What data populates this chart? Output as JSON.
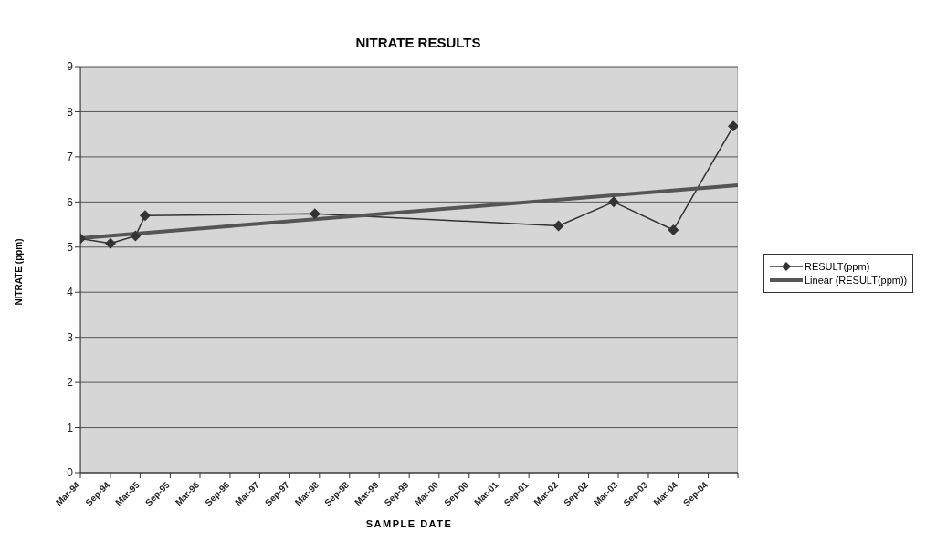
{
  "chart_data": {
    "type": "line",
    "title": "NITRATE RESULTS",
    "xlabel": "SAMPLE DATE",
    "ylabel": "NITRATE (ppm)",
    "xlim": [
      "1994-03",
      "2005-03"
    ],
    "xticks": [
      {
        "value": "1994-03",
        "label": "Mar-94"
      },
      {
        "value": "1994-09",
        "label": "Sep-94"
      },
      {
        "value": "1995-03",
        "label": "Mar-95"
      },
      {
        "value": "1995-09",
        "label": "Sep-95"
      },
      {
        "value": "1996-03",
        "label": "Mar-96"
      },
      {
        "value": "1996-09",
        "label": "Sep-96"
      },
      {
        "value": "1997-03",
        "label": "Mar-97"
      },
      {
        "value": "1997-09",
        "label": "Sep-97"
      },
      {
        "value": "1998-03",
        "label": "Mar-98"
      },
      {
        "value": "1998-09",
        "label": "Sep-98"
      },
      {
        "value": "1999-03",
        "label": "Mar-99"
      },
      {
        "value": "1999-09",
        "label": "Sep-99"
      },
      {
        "value": "2000-03",
        "label": "Mar-00"
      },
      {
        "value": "2000-09",
        "label": "Sep-00"
      },
      {
        "value": "2001-03",
        "label": "Mar-01"
      },
      {
        "value": "2001-09",
        "label": "Sep-01"
      },
      {
        "value": "2002-03",
        "label": "Mar-02"
      },
      {
        "value": "2002-09",
        "label": "Sep-02"
      },
      {
        "value": "2003-03",
        "label": "Mar-03"
      },
      {
        "value": "2003-09",
        "label": "Sep-03"
      },
      {
        "value": "2004-03",
        "label": "Mar-04"
      },
      {
        "value": "2004-09",
        "label": "Sep-04"
      },
      {
        "value": "2005-03",
        "label": null
      }
    ],
    "ylim": [
      0,
      9
    ],
    "yticks": [
      0,
      1,
      2,
      3,
      4,
      5,
      6,
      7,
      8,
      9
    ],
    "grid": "y",
    "legend": "right",
    "series": [
      {
        "name": "RESULT(ppm)",
        "color": "#333333",
        "marker": "diamond",
        "x": [
          "1994-03",
          "1994-09",
          "1995-02",
          "1995-04",
          "1998-02",
          "2002-03",
          "2003-02",
          "2004-02",
          "2005-02"
        ],
        "values": [
          5.19,
          5.08,
          5.25,
          5.7,
          5.74,
          5.47,
          6.0,
          5.38,
          7.68
        ]
      },
      {
        "name": "Linear (RESULT(ppm))",
        "color": "#555555",
        "marker": "none",
        "x": [
          "1994-03",
          "2005-03"
        ],
        "values": [
          5.2,
          6.37
        ]
      }
    ]
  }
}
